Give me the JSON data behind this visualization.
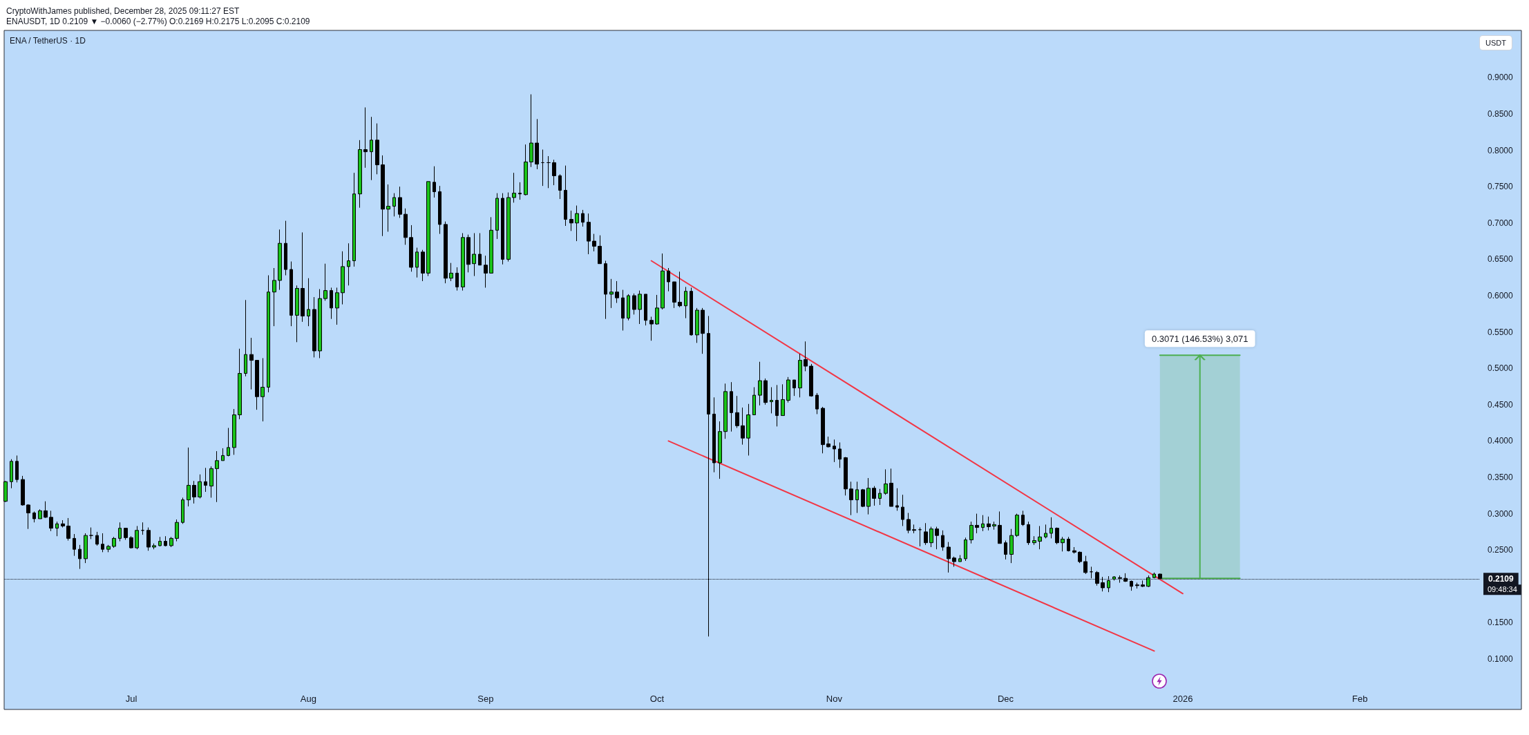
{
  "chart_data": {
    "type": "candlestick",
    "title": "CryptoWithJames published, December 28, 2025 09:11:27 EST",
    "subtitle": "ENAUSDT, 1D 0.2109 ▼ −0.0060 (−2.77%) O:0.2169 H:0.2175 L:0.2095 C:0.2109",
    "ylabel": "USDT",
    "x": [
      "2025-06-09",
      "2025-06-10",
      "2025-06-11",
      "2025-06-12",
      "2025-06-13",
      "2025-06-14",
      "2025-06-15",
      "2025-06-16",
      "2025-06-17",
      "2025-06-18",
      "2025-06-19",
      "2025-06-20",
      "2025-06-21",
      "2025-06-22",
      "2025-06-23",
      "2025-06-24",
      "2025-06-25",
      "2025-06-26",
      "2025-06-27",
      "2025-06-28",
      "2025-06-29",
      "2025-06-30",
      "2025-07-01",
      "2025-07-02",
      "2025-07-03",
      "2025-07-04",
      "2025-07-05",
      "2025-07-06",
      "2025-07-07",
      "2025-07-08",
      "2025-07-09",
      "2025-07-10",
      "2025-07-11",
      "2025-07-12",
      "2025-07-13",
      "2025-07-14",
      "2025-07-15",
      "2025-07-16",
      "2025-07-17",
      "2025-07-18",
      "2025-07-19",
      "2025-07-20",
      "2025-07-21",
      "2025-07-22",
      "2025-07-23",
      "2025-07-24",
      "2025-07-25",
      "2025-07-26",
      "2025-07-27",
      "2025-07-28",
      "2025-07-29",
      "2025-07-30",
      "2025-07-31",
      "2025-08-01",
      "2025-08-02",
      "2025-08-03",
      "2025-08-04",
      "2025-08-05",
      "2025-08-06",
      "2025-08-07",
      "2025-08-08",
      "2025-08-09",
      "2025-08-10",
      "2025-08-11",
      "2025-08-12",
      "2025-08-13",
      "2025-08-14",
      "2025-08-15",
      "2025-08-16",
      "2025-08-17",
      "2025-08-18",
      "2025-08-19",
      "2025-08-20",
      "2025-08-21",
      "2025-08-22",
      "2025-08-23",
      "2025-08-24",
      "2025-08-25",
      "2025-08-26",
      "2025-08-27",
      "2025-08-28",
      "2025-08-29",
      "2025-08-30",
      "2025-08-31",
      "2025-09-01",
      "2025-09-02",
      "2025-09-03",
      "2025-09-04",
      "2025-09-05",
      "2025-09-06",
      "2025-09-07",
      "2025-09-08",
      "2025-09-09",
      "2025-09-10",
      "2025-09-11",
      "2025-09-12",
      "2025-09-13",
      "2025-09-14",
      "2025-09-15",
      "2025-09-16",
      "2025-09-17",
      "2025-09-18",
      "2025-09-19",
      "2025-09-20",
      "2025-09-21",
      "2025-09-22",
      "2025-09-23",
      "2025-09-24",
      "2025-09-25",
      "2025-09-26",
      "2025-09-27",
      "2025-09-28",
      "2025-09-29",
      "2025-09-30",
      "2025-10-01",
      "2025-10-02",
      "2025-10-03",
      "2025-10-04",
      "2025-10-05",
      "2025-10-06",
      "2025-10-07",
      "2025-10-08",
      "2025-10-09",
      "2025-10-10",
      "2025-10-11",
      "2025-10-12",
      "2025-10-13",
      "2025-10-14",
      "2025-10-15",
      "2025-10-16",
      "2025-10-17",
      "2025-10-18",
      "2025-10-19",
      "2025-10-20",
      "2025-10-21",
      "2025-10-22",
      "2025-10-23",
      "2025-10-24",
      "2025-10-25",
      "2025-10-26",
      "2025-10-27",
      "2025-10-28",
      "2025-10-29",
      "2025-10-30",
      "2025-10-31",
      "2025-11-01",
      "2025-11-02",
      "2025-11-03",
      "2025-11-04",
      "2025-11-05",
      "2025-11-06",
      "2025-11-07",
      "2025-11-08",
      "2025-11-09",
      "2025-11-10",
      "2025-11-11",
      "2025-11-12",
      "2025-11-13",
      "2025-11-14",
      "2025-11-15",
      "2025-11-16",
      "2025-11-17",
      "2025-11-18",
      "2025-11-19",
      "2025-11-20",
      "2025-11-21",
      "2025-11-22",
      "2025-11-23",
      "2025-11-24",
      "2025-11-25",
      "2025-11-26",
      "2025-11-27",
      "2025-11-28",
      "2025-11-29",
      "2025-11-30",
      "2025-12-01",
      "2025-12-02",
      "2025-12-03",
      "2025-12-04",
      "2025-12-05",
      "2025-12-06",
      "2025-12-07",
      "2025-12-08",
      "2025-12-09",
      "2025-12-10",
      "2025-12-11",
      "2025-12-12",
      "2025-12-13",
      "2025-12-14",
      "2025-12-15",
      "2025-12-16",
      "2025-12-17",
      "2025-12-18",
      "2025-12-19",
      "2025-12-20",
      "2025-12-21",
      "2025-12-22",
      "2025-12-23",
      "2025-12-24",
      "2025-12-25",
      "2025-12-26",
      "2025-12-27",
      "2025-12-28"
    ],
    "ohlc": [
      [
        0.317,
        0.345,
        0.316,
        0.344
      ],
      [
        0.344,
        0.375,
        0.335,
        0.372
      ],
      [
        0.372,
        0.38,
        0.343,
        0.347
      ],
      [
        0.347,
        0.352,
        0.311,
        0.312
      ],
      [
        0.312,
        0.313,
        0.279,
        0.301
      ],
      [
        0.301,
        0.303,
        0.288,
        0.293
      ],
      [
        0.293,
        0.306,
        0.293,
        0.304
      ],
      [
        0.304,
        0.317,
        0.294,
        0.295
      ],
      [
        0.295,
        0.304,
        0.276,
        0.28
      ],
      [
        0.28,
        0.289,
        0.269,
        0.286
      ],
      [
        0.286,
        0.291,
        0.281,
        0.283
      ],
      [
        0.283,
        0.294,
        0.263,
        0.266
      ],
      [
        0.266,
        0.272,
        0.242,
        0.251
      ],
      [
        0.251,
        0.257,
        0.224,
        0.238
      ],
      [
        0.238,
        0.273,
        0.232,
        0.27
      ],
      [
        0.27,
        0.281,
        0.265,
        0.27
      ],
      [
        0.27,
        0.275,
        0.256,
        0.258
      ],
      [
        0.258,
        0.273,
        0.247,
        0.251
      ],
      [
        0.251,
        0.257,
        0.247,
        0.255
      ],
      [
        0.255,
        0.268,
        0.253,
        0.266
      ],
      [
        0.266,
        0.288,
        0.262,
        0.28
      ],
      [
        0.28,
        0.28,
        0.264,
        0.267
      ],
      [
        0.267,
        0.269,
        0.252,
        0.253
      ],
      [
        0.253,
        0.283,
        0.251,
        0.277
      ],
      [
        0.277,
        0.288,
        0.271,
        0.277
      ],
      [
        0.277,
        0.281,
        0.249,
        0.254
      ],
      [
        0.254,
        0.259,
        0.251,
        0.256
      ],
      [
        0.256,
        0.268,
        0.255,
        0.262
      ],
      [
        0.262,
        0.269,
        0.255,
        0.256
      ],
      [
        0.256,
        0.268,
        0.254,
        0.266
      ],
      [
        0.266,
        0.292,
        0.262,
        0.288
      ],
      [
        0.288,
        0.322,
        0.286,
        0.319
      ],
      [
        0.319,
        0.391,
        0.31,
        0.339
      ],
      [
        0.339,
        0.345,
        0.314,
        0.323
      ],
      [
        0.323,
        0.354,
        0.321,
        0.344
      ],
      [
        0.344,
        0.363,
        0.33,
        0.339
      ],
      [
        0.338,
        0.365,
        0.322,
        0.362
      ],
      [
        0.362,
        0.386,
        0.316,
        0.373
      ],
      [
        0.373,
        0.39,
        0.373,
        0.38
      ],
      [
        0.38,
        0.418,
        0.379,
        0.391
      ],
      [
        0.391,
        0.444,
        0.381,
        0.436
      ],
      [
        0.436,
        0.527,
        0.43,
        0.493
      ],
      [
        0.493,
        0.594,
        0.489,
        0.519
      ],
      [
        0.519,
        0.542,
        0.471,
        0.511
      ],
      [
        0.511,
        0.511,
        0.443,
        0.461
      ],
      [
        0.461,
        0.514,
        0.427,
        0.474
      ],
      [
        0.474,
        0.628,
        0.467,
        0.605
      ],
      [
        0.605,
        0.638,
        0.558,
        0.621
      ],
      [
        0.621,
        0.691,
        0.608,
        0.672
      ],
      [
        0.672,
        0.703,
        0.628,
        0.636
      ],
      [
        0.636,
        0.647,
        0.558,
        0.573
      ],
      [
        0.573,
        0.614,
        0.536,
        0.61
      ],
      [
        0.61,
        0.687,
        0.564,
        0.572
      ],
      [
        0.572,
        0.624,
        0.558,
        0.581
      ],
      [
        0.581,
        0.598,
        0.515,
        0.524
      ],
      [
        0.524,
        0.609,
        0.514,
        0.596
      ],
      [
        0.596,
        0.644,
        0.593,
        0.607
      ],
      [
        0.607,
        0.611,
        0.568,
        0.583
      ],
      [
        0.583,
        0.611,
        0.56,
        0.604
      ],
      [
        0.604,
        0.661,
        0.588,
        0.64
      ],
      [
        0.64,
        0.672,
        0.614,
        0.648
      ],
      [
        0.648,
        0.769,
        0.64,
        0.74
      ],
      [
        0.74,
        0.814,
        0.721,
        0.801
      ],
      [
        0.801,
        0.859,
        0.776,
        0.798
      ],
      [
        0.798,
        0.846,
        0.759,
        0.814
      ],
      [
        0.814,
        0.837,
        0.767,
        0.78
      ],
      [
        0.78,
        0.793,
        0.682,
        0.719
      ],
      [
        0.719,
        0.753,
        0.688,
        0.723
      ],
      [
        0.723,
        0.741,
        0.709,
        0.735
      ],
      [
        0.735,
        0.75,
        0.707,
        0.712
      ],
      [
        0.712,
        0.72,
        0.67,
        0.68
      ],
      [
        0.68,
        0.697,
        0.633,
        0.639
      ],
      [
        0.639,
        0.666,
        0.625,
        0.66
      ],
      [
        0.66,
        0.663,
        0.62,
        0.631
      ],
      [
        0.631,
        0.757,
        0.627,
        0.757
      ],
      [
        0.756,
        0.778,
        0.735,
        0.743
      ],
      [
        0.743,
        0.751,
        0.685,
        0.698
      ],
      [
        0.698,
        0.702,
        0.617,
        0.624
      ],
      [
        0.624,
        0.645,
        0.62,
        0.631
      ],
      [
        0.631,
        0.639,
        0.607,
        0.612
      ],
      [
        0.612,
        0.686,
        0.607,
        0.68
      ],
      [
        0.68,
        0.684,
        0.632,
        0.643
      ],
      [
        0.644,
        0.686,
        0.627,
        0.657
      ],
      [
        0.657,
        0.686,
        0.642,
        0.642
      ],
      [
        0.642,
        0.655,
        0.611,
        0.631
      ],
      [
        0.631,
        0.708,
        0.631,
        0.69
      ],
      [
        0.69,
        0.741,
        0.678,
        0.734
      ],
      [
        0.734,
        0.741,
        0.643,
        0.65
      ],
      [
        0.65,
        0.742,
        0.647,
        0.735
      ],
      [
        0.735,
        0.769,
        0.728,
        0.741
      ],
      [
        0.741,
        0.756,
        0.732,
        0.74
      ],
      [
        0.739,
        0.808,
        0.738,
        0.784
      ],
      [
        0.784,
        0.877,
        0.777,
        0.81
      ],
      [
        0.81,
        0.843,
        0.774,
        0.781
      ],
      [
        0.783,
        0.801,
        0.751,
        0.783
      ],
      [
        0.783,
        0.792,
        0.748,
        0.783
      ],
      [
        0.783,
        0.787,
        0.752,
        0.765
      ],
      [
        0.765,
        0.767,
        0.733,
        0.745
      ],
      [
        0.745,
        0.779,
        0.696,
        0.705
      ],
      [
        0.705,
        0.717,
        0.689,
        0.7
      ],
      [
        0.7,
        0.724,
        0.675,
        0.713
      ],
      [
        0.713,
        0.718,
        0.695,
        0.701
      ],
      [
        0.701,
        0.713,
        0.657,
        0.675
      ],
      [
        0.675,
        0.685,
        0.661,
        0.668
      ],
      [
        0.668,
        0.683,
        0.644,
        0.644
      ],
      [
        0.644,
        0.648,
        0.568,
        0.602
      ],
      [
        0.602,
        0.623,
        0.583,
        0.605
      ],
      [
        0.605,
        0.62,
        0.59,
        0.597
      ],
      [
        0.597,
        0.608,
        0.552,
        0.569
      ],
      [
        0.569,
        0.602,
        0.566,
        0.6
      ],
      [
        0.6,
        0.603,
        0.574,
        0.581
      ],
      [
        0.581,
        0.607,
        0.561,
        0.602
      ],
      [
        0.602,
        0.602,
        0.559,
        0.566
      ],
      [
        0.566,
        0.571,
        0.538,
        0.561
      ],
      [
        0.561,
        0.601,
        0.56,
        0.583
      ],
      [
        0.583,
        0.658,
        0.581,
        0.634
      ],
      [
        0.634,
        0.638,
        0.606,
        0.619
      ],
      [
        0.619,
        0.619,
        0.583,
        0.591
      ],
      [
        0.591,
        0.633,
        0.584,
        0.586
      ],
      [
        0.586,
        0.612,
        0.569,
        0.606
      ],
      [
        0.606,
        0.611,
        0.545,
        0.546
      ],
      [
        0.546,
        0.583,
        0.535,
        0.58
      ],
      [
        0.58,
        0.583,
        0.52,
        0.548
      ],
      [
        0.548,
        0.572,
        0.131,
        0.437
      ],
      [
        0.437,
        0.46,
        0.357,
        0.37
      ],
      [
        0.37,
        0.427,
        0.348,
        0.413
      ],
      [
        0.413,
        0.479,
        0.403,
        0.468
      ],
      [
        0.468,
        0.481,
        0.413,
        0.439
      ],
      [
        0.439,
        0.462,
        0.418,
        0.421
      ],
      [
        0.421,
        0.446,
        0.395,
        0.404
      ],
      [
        0.404,
        0.451,
        0.38,
        0.436
      ],
      [
        0.436,
        0.474,
        0.436,
        0.463
      ],
      [
        0.463,
        0.509,
        0.449,
        0.483
      ],
      [
        0.483,
        0.486,
        0.45,
        0.453
      ],
      [
        0.454,
        0.474,
        0.438,
        0.456
      ],
      [
        0.456,
        0.477,
        0.42,
        0.435
      ],
      [
        0.435,
        0.478,
        0.435,
        0.457
      ],
      [
        0.456,
        0.488,
        0.453,
        0.484
      ],
      [
        0.484,
        0.484,
        0.462,
        0.473
      ],
      [
        0.473,
        0.52,
        0.46,
        0.511
      ],
      [
        0.512,
        0.537,
        0.496,
        0.503
      ],
      [
        0.503,
        0.506,
        0.461,
        0.462
      ],
      [
        0.463,
        0.466,
        0.437,
        0.444
      ],
      [
        0.445,
        0.447,
        0.383,
        0.395
      ],
      [
        0.396,
        0.406,
        0.391,
        0.392
      ],
      [
        0.393,
        0.402,
        0.371,
        0.389
      ],
      [
        0.389,
        0.398,
        0.363,
        0.375
      ],
      [
        0.377,
        0.378,
        0.325,
        0.334
      ],
      [
        0.334,
        0.344,
        0.298,
        0.319
      ],
      [
        0.319,
        0.344,
        0.301,
        0.333
      ],
      [
        0.333,
        0.334,
        0.309,
        0.31
      ],
      [
        0.31,
        0.349,
        0.299,
        0.335
      ],
      [
        0.335,
        0.338,
        0.311,
        0.321
      ],
      [
        0.321,
        0.334,
        0.312,
        0.328
      ],
      [
        0.328,
        0.361,
        0.326,
        0.341
      ],
      [
        0.342,
        0.362,
        0.31,
        0.31
      ],
      [
        0.311,
        0.335,
        0.304,
        0.309
      ],
      [
        0.309,
        0.326,
        0.283,
        0.292
      ],
      [
        0.292,
        0.301,
        0.273,
        0.277
      ],
      [
        0.278,
        0.285,
        0.273,
        0.277
      ],
      [
        0.278,
        0.281,
        0.255,
        0.278
      ],
      [
        0.275,
        0.287,
        0.257,
        0.26
      ],
      [
        0.26,
        0.282,
        0.254,
        0.279
      ],
      [
        0.279,
        0.282,
        0.251,
        0.27
      ],
      [
        0.27,
        0.277,
        0.249,
        0.254
      ],
      [
        0.254,
        0.261,
        0.219,
        0.238
      ],
      [
        0.239,
        0.241,
        0.227,
        0.234
      ],
      [
        0.234,
        0.243,
        0.234,
        0.238
      ],
      [
        0.238,
        0.267,
        0.235,
        0.264
      ],
      [
        0.264,
        0.289,
        0.259,
        0.284
      ],
      [
        0.284,
        0.3,
        0.273,
        0.281
      ],
      [
        0.281,
        0.298,
        0.276,
        0.286
      ],
      [
        0.286,
        0.296,
        0.277,
        0.282
      ],
      [
        0.283,
        0.289,
        0.278,
        0.285
      ],
      [
        0.284,
        0.303,
        0.259,
        0.259
      ],
      [
        0.26,
        0.263,
        0.237,
        0.244
      ],
      [
        0.244,
        0.279,
        0.232,
        0.27
      ],
      [
        0.27,
        0.3,
        0.268,
        0.298
      ],
      [
        0.298,
        0.304,
        0.283,
        0.285
      ],
      [
        0.285,
        0.289,
        0.257,
        0.26
      ],
      [
        0.26,
        0.269,
        0.257,
        0.263
      ],
      [
        0.262,
        0.283,
        0.251,
        0.268
      ],
      [
        0.268,
        0.285,
        0.266,
        0.273
      ],
      [
        0.273,
        0.295,
        0.266,
        0.28
      ],
      [
        0.28,
        0.281,
        0.258,
        0.26
      ],
      [
        0.26,
        0.268,
        0.248,
        0.265
      ],
      [
        0.265,
        0.268,
        0.248,
        0.249
      ],
      [
        0.249,
        0.254,
        0.245,
        0.247
      ],
      [
        0.247,
        0.248,
        0.232,
        0.234
      ],
      [
        0.234,
        0.242,
        0.217,
        0.219
      ],
      [
        0.22,
        0.227,
        0.211,
        0.22
      ],
      [
        0.219,
        0.221,
        0.201,
        0.204
      ],
      [
        0.205,
        0.213,
        0.193,
        0.198
      ],
      [
        0.198,
        0.214,
        0.192,
        0.208
      ],
      [
        0.21,
        0.214,
        0.208,
        0.213
      ],
      [
        0.212,
        0.215,
        0.205,
        0.211
      ],
      [
        0.211,
        0.218,
        0.206,
        0.207
      ],
      [
        0.207,
        0.208,
        0.194,
        0.2
      ],
      [
        0.202,
        0.205,
        0.197,
        0.201
      ],
      [
        0.202,
        0.208,
        0.199,
        0.2
      ],
      [
        0.2,
        0.215,
        0.199,
        0.212
      ],
      [
        0.212,
        0.219,
        0.211,
        0.2169
      ],
      [
        0.2169,
        0.2175,
        0.2095,
        0.2109
      ]
    ],
    "colors": [
      "#1ac31a",
      "#1ac31a",
      "#000000",
      "#000000",
      "#000000",
      "#000000",
      "#1ac31a",
      "#000000",
      "#000000",
      "#1ac31a",
      "#000000",
      "#000000",
      "#000000",
      "#000000",
      "#1ac31a",
      "#000000",
      "#000000",
      "#000000",
      "#1ac31a",
      "#1ac31a",
      "#1ac31a",
      "#000000",
      "#000000",
      "#1ac31a",
      "#000000",
      "#000000",
      "#1ac31a",
      "#1ac31a",
      "#000000",
      "#1ac31a",
      "#1ac31a",
      "#1ac31a",
      "#1ac31a",
      "#000000",
      "#1ac31a",
      "#000000",
      "#1ac31a",
      "#1ac31a",
      "#1ac31a",
      "#1ac31a",
      "#1ac31a",
      "#1ac31a",
      "#1ac31a",
      "#000000",
      "#000000",
      "#1ac31a",
      "#1ac31a",
      "#1ac31a",
      "#1ac31a",
      "#000000",
      "#000000",
      "#1ac31a",
      "#000000",
      "#1ac31a",
      "#000000",
      "#1ac31a",
      "#1ac31a",
      "#000000",
      "#1ac31a",
      "#1ac31a",
      "#1ac31a",
      "#1ac31a",
      "#1ac31a",
      "#000000",
      "#1ac31a",
      "#000000",
      "#000000",
      "#1ac31a",
      "#1ac31a",
      "#000000",
      "#000000",
      "#000000",
      "#1ac31a",
      "#000000",
      "#1ac31a",
      "#000000",
      "#000000",
      "#000000",
      "#1ac31a",
      "#000000",
      "#1ac31a",
      "#000000",
      "#1ac31a",
      "#000000",
      "#000000",
      "#1ac31a",
      "#1ac31a",
      "#000000",
      "#1ac31a",
      "#1ac31a",
      "#000000",
      "#1ac31a",
      "#1ac31a",
      "#000000",
      "#000000",
      "#000000",
      "#000000",
      "#000000",
      "#000000",
      "#000000",
      "#1ac31a",
      "#000000",
      "#000000",
      "#000000",
      "#000000",
      "#000000",
      "#1ac31a",
      "#000000",
      "#000000",
      "#1ac31a",
      "#000000",
      "#1ac31a",
      "#000000",
      "#000000",
      "#1ac31a",
      "#1ac31a",
      "#000000",
      "#000000",
      "#000000",
      "#1ac31a",
      "#000000",
      "#1ac31a",
      "#000000",
      "#000000",
      "#000000",
      "#1ac31a",
      "#1ac31a",
      "#000000",
      "#000000",
      "#000000",
      "#1ac31a",
      "#1ac31a",
      "#1ac31a",
      "#000000",
      "#1ac31a",
      "#000000",
      "#1ac31a",
      "#1ac31a",
      "#000000",
      "#1ac31a",
      "#000000",
      "#000000",
      "#000000",
      "#000000",
      "#000000",
      "#000000",
      "#000000",
      "#000000",
      "#000000",
      "#1ac31a",
      "#000000",
      "#1ac31a",
      "#000000",
      "#1ac31a",
      "#1ac31a",
      "#000000",
      "#000000",
      "#000000",
      "#000000",
      "#000000",
      "#000000",
      "#000000",
      "#1ac31a",
      "#000000",
      "#000000",
      "#000000",
      "#000000",
      "#1ac31a",
      "#1ac31a",
      "#1ac31a",
      "#000000",
      "#1ac31a",
      "#000000",
      "#1ac31a",
      "#000000",
      "#000000",
      "#1ac31a",
      "#1ac31a",
      "#000000",
      "#000000",
      "#1ac31a",
      "#1ac31a",
      "#1ac31a",
      "#1ac31a",
      "#000000",
      "#1ac31a",
      "#000000",
      "#000000",
      "#000000",
      "#000000",
      "#000000",
      "#000000",
      "#000000",
      "#1ac31a",
      "#1ac31a",
      "#000000",
      "#000000",
      "#000000",
      "#000000",
      "#000000",
      "#1ac31a",
      "#1ac31a",
      "#000000"
    ],
    "series": [
      {
        "type": "line",
        "x": [
          "2025-09-30",
          "2026-01-01"
        ],
        "values": [
          0.648,
          0.19
        ],
        "color": "#f23645"
      },
      {
        "type": "line",
        "x": [
          "2025-10-03",
          "2025-12-27"
        ],
        "values": [
          0.4,
          0.111
        ],
        "color": "#f23645"
      },
      {
        "type": "line",
        "x": [
          "2025-12-28",
          "2026-01-11"
        ],
        "values": [
          0.2109,
          0.2109
        ],
        "lower": [
          0.2109,
          0.2109
        ],
        "upper": [
          0.518,
          0.518
        ],
        "color": "#4caf50"
      },
      {
        "type": "line",
        "x": [
          "2025-12-28",
          "2026-01-11"
        ],
        "values": [
          0.518,
          0.518
        ],
        "color": "#4caf50"
      },
      {
        "type": "line",
        "x": [
          "2026-01-04",
          "2026-01-04"
        ],
        "values": [
          0.2109,
          0.518
        ],
        "color": "#4caf50"
      }
    ],
    "xlim": [
      "2025-06-08T18:00",
      "2026-02-22"
    ],
    "xticks": [
      {
        "value": "2025-07-01",
        "label": "Jul"
      },
      {
        "value": "2025-08-01",
        "label": "Aug"
      },
      {
        "value": "2025-09-01",
        "label": "Sep"
      },
      {
        "value": "2025-10-01",
        "label": "Oct"
      },
      {
        "value": "2025-11-01",
        "label": "Nov"
      },
      {
        "value": "2025-12-01",
        "label": "Dec"
      },
      {
        "value": "2026-01-01",
        "label": "2026"
      },
      {
        "value": "2026-02-01",
        "label": "Feb"
      }
    ],
    "ylim": [
      0.1,
      0.965
    ],
    "yticks": [
      {
        "value": 0.1,
        "label": "0.1000"
      },
      {
        "value": 0.15,
        "label": "0.1500"
      },
      {
        "value": 0.25,
        "label": "0.2500"
      },
      {
        "value": 0.3,
        "label": "0.3000"
      },
      {
        "value": 0.35,
        "label": "0.3500"
      },
      {
        "value": 0.4,
        "label": "0.4000"
      },
      {
        "value": 0.45,
        "label": "0.4500"
      },
      {
        "value": 0.5,
        "label": "0.5000"
      },
      {
        "value": 0.55,
        "label": "0.5500"
      },
      {
        "value": 0.6,
        "label": "0.6000"
      },
      {
        "value": 0.65,
        "label": "0.6500"
      },
      {
        "value": 0.7,
        "label": "0.7000"
      },
      {
        "value": 0.75,
        "label": "0.7500"
      },
      {
        "value": 0.8,
        "label": "0.8000"
      },
      {
        "value": 0.85,
        "label": "0.8500"
      },
      {
        "value": 0.9,
        "label": "0.9000"
      }
    ],
    "ref_lines": [
      {
        "axis": "y",
        "value": 0.2109,
        "label": "0.2109",
        "line_style": "dotted",
        "color": "#131722"
      }
    ],
    "annotations": [
      "ENA / TetherUS · 1D",
      "09:48:34",
      {
        "text": "0.3071 (146.53%) 3,071",
        "x": "2026-01-04",
        "y": 0.518
      }
    ]
  }
}
